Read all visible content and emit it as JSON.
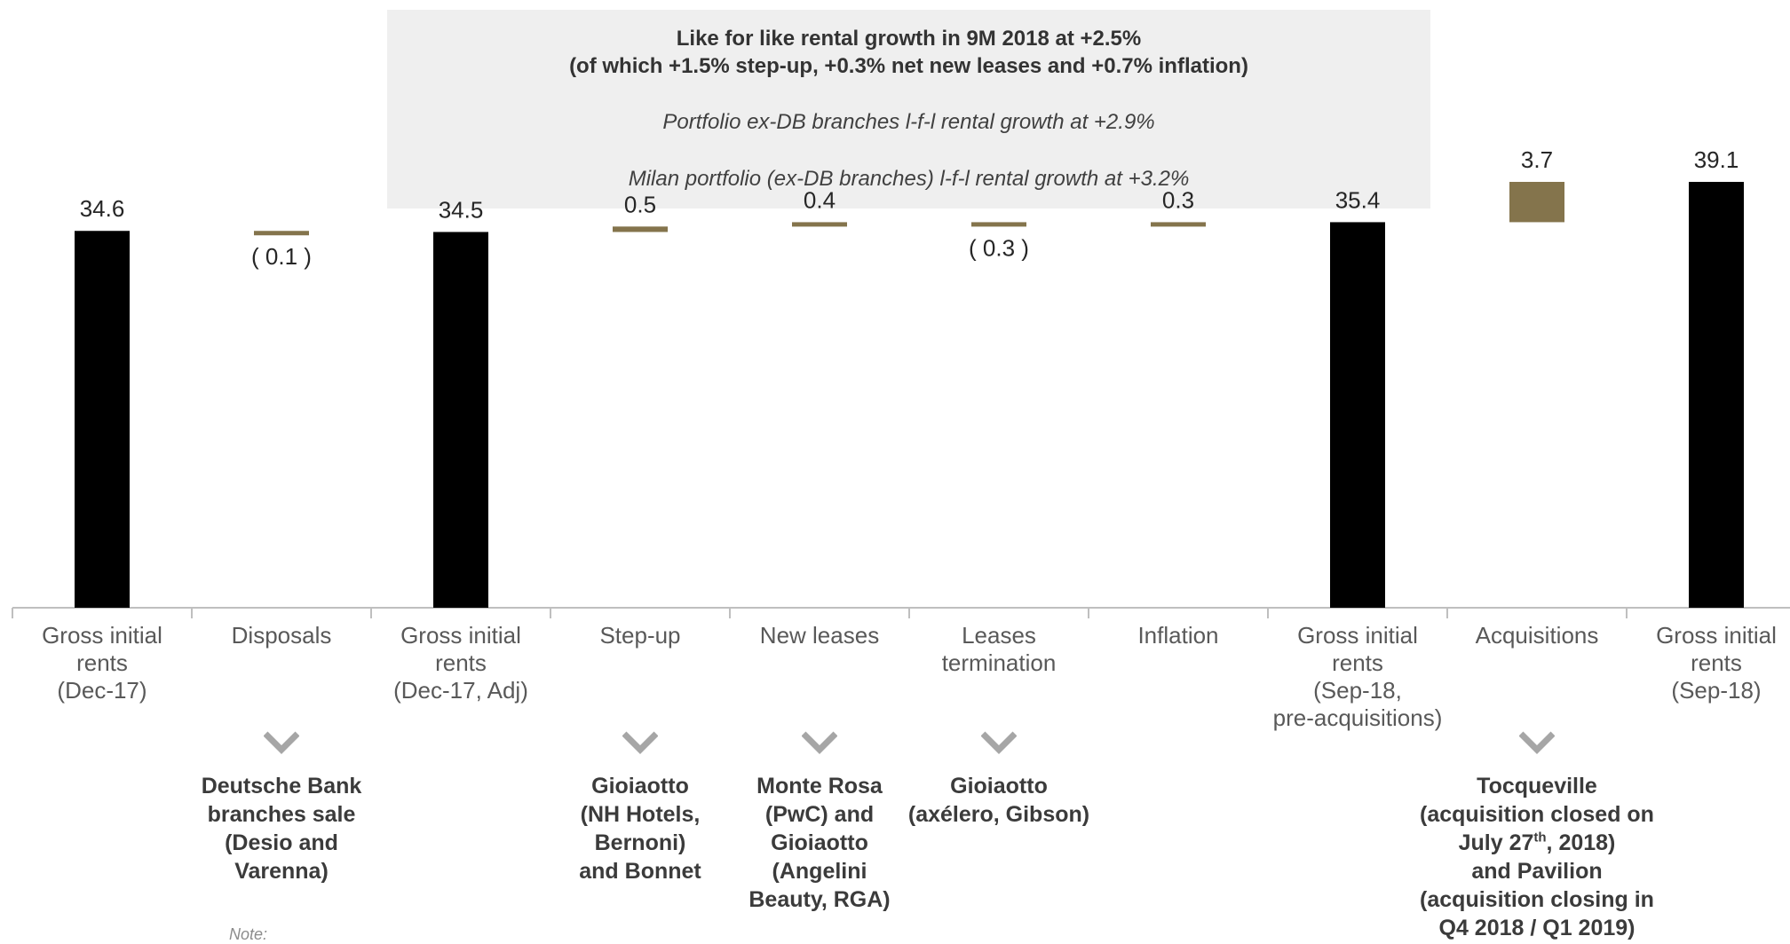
{
  "info_box": {
    "headline_1": "Like for like rental growth in 9M 2018 at +2.5%",
    "headline_2": "(of which +1.5% step-up, +0.3% net new leases and +0.7% inflation)",
    "line_3": "Portfolio ex-DB branches l-f-l rental growth at +2.9%",
    "line_4": "Milan portfolio (ex-DB branches) l-f-l rental growth at +3.2%"
  },
  "colors": {
    "total": "#000000",
    "delta": "#84744c",
    "axis": "#bfbfbf",
    "chevron": "#a6a6a6"
  },
  "chart_data": {
    "type": "bar",
    "subtype": "waterfall",
    "categories": [
      "Gross initial rents (Dec-17)",
      "Disposals",
      "Gross initial rents (Dec-17, Adj)",
      "Step-up",
      "New leases",
      "Leases termination",
      "Inflation",
      "Gross initial rents (Sep-18, pre-acquisitions)",
      "Acquisitions",
      "Gross initial rents (Sep-18)"
    ],
    "category_lines": [
      [
        "Gross initial",
        "rents",
        "(Dec-17)"
      ],
      [
        "Disposals"
      ],
      [
        "Gross initial",
        "rents",
        "(Dec-17, Adj)"
      ],
      [
        "Step-up"
      ],
      [
        "New leases"
      ],
      [
        "Leases",
        "termination"
      ],
      [
        "Inflation"
      ],
      [
        "Gross initial",
        "rents",
        "(Sep-18,",
        "pre-acquisitions)"
      ],
      [
        "Acquisitions"
      ],
      [
        "Gross initial",
        "rents",
        "(Sep-18)"
      ]
    ],
    "values": [
      34.6,
      -0.1,
      34.5,
      0.5,
      0.4,
      -0.3,
      0.3,
      35.4,
      3.7,
      39.1
    ],
    "kinds": [
      "total",
      "delta",
      "total",
      "delta",
      "delta",
      "delta",
      "delta",
      "total",
      "delta",
      "total"
    ],
    "data_labels": [
      "34.6",
      "( 0.1 )",
      "34.5",
      "0.5",
      "0.4",
      "( 0.3 )",
      "0.3",
      "35.4",
      "3.7",
      "39.1"
    ]
  },
  "notes": [
    {
      "category_index": 1,
      "lines": [
        "Deutsche Bank",
        "branches sale",
        "(Desio and",
        "Varenna)"
      ]
    },
    {
      "category_index": 3,
      "lines": [
        "Gioiaotto",
        "(NH Hotels,",
        "Bernoni)",
        "and Bonnet"
      ]
    },
    {
      "category_index": 4,
      "lines": [
        "Monte Rosa",
        "(PwC) and",
        "Gioiaotto",
        "(Angelini",
        "Beauty, RGA)"
      ]
    },
    {
      "category_index": 5,
      "lines": [
        "Gioiaotto",
        "(axélero, Gibson)"
      ]
    },
    {
      "category_index": 8,
      "lines": [
        "Tocqueville",
        "(acquisition closed on",
        "July 27",
        "th",
        ", 2018)",
        "and Pavilion",
        "(acquisition closing in",
        "Q4 2018 / Q1 2019)"
      ]
    }
  ],
  "footnote": "Note:"
}
